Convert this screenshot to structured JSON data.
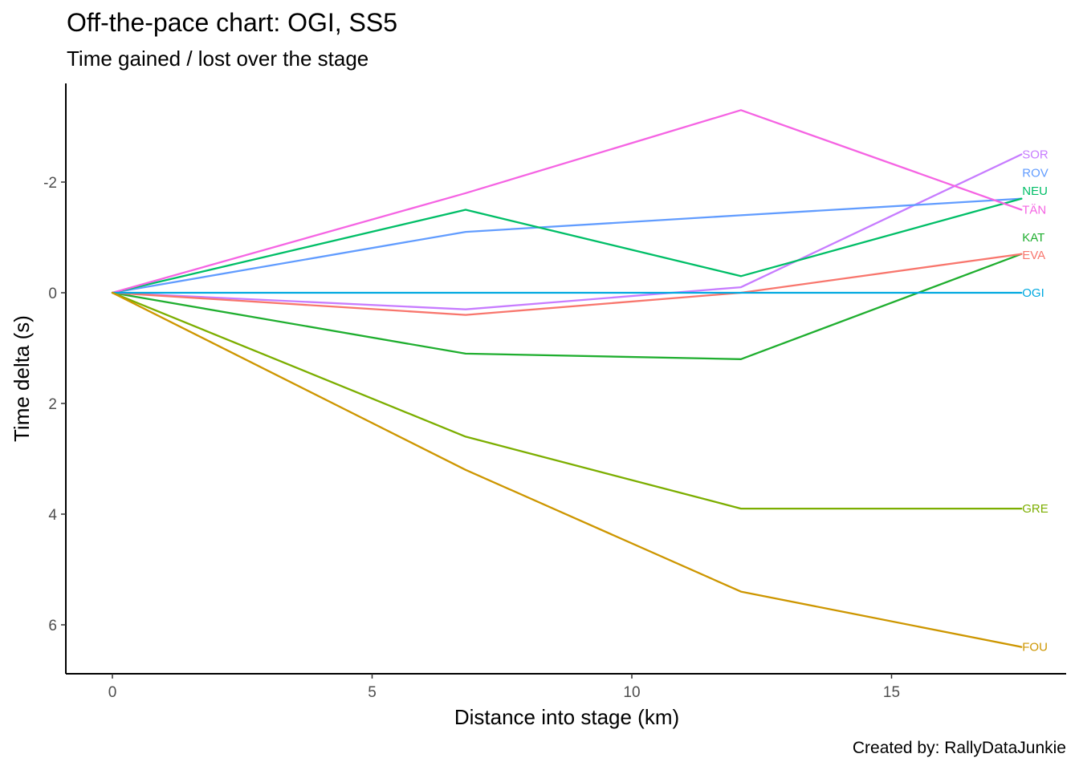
{
  "title": "Off-the-pace chart: OGI, SS5",
  "subtitle": "Time gained / lost over the stage",
  "caption": "Created by: RallyDataJunkie",
  "chart_data": {
    "type": "line",
    "xlabel": "Distance into stage (km)",
    "ylabel": "Time delta (s)",
    "xlim": [
      -0.85,
      18.4
    ],
    "ylim": [
      6.9,
      -3.8
    ],
    "y_reversed": true,
    "x_ticks": [
      0,
      5,
      10,
      15
    ],
    "y_ticks": [
      -2,
      0,
      2,
      4,
      6
    ],
    "y_tick_labels": [
      "-2",
      "0",
      "2",
      "4",
      "6"
    ],
    "grid": false,
    "legend": "direct labels at line ends",
    "x": [
      0,
      6.8,
      12.1,
      17.5
    ],
    "series": [
      {
        "name": "SOR",
        "color": "#C77CFF",
        "values": [
          0,
          0.3,
          -0.1,
          -2.5
        ]
      },
      {
        "name": "ROV",
        "color": "#619CFF",
        "values": [
          0,
          -1.1,
          -1.4,
          -1.7
        ]
      },
      {
        "name": "NEU",
        "color": "#00BE67",
        "values": [
          0,
          -1.5,
          -0.3,
          -1.7
        ]
      },
      {
        "name": "TÄN",
        "color": "#F564E3",
        "values": [
          0,
          -1.8,
          -3.3,
          -1.5
        ]
      },
      {
        "name": "KAT",
        "color": "#1FAE2F",
        "values": [
          0,
          1.1,
          1.2,
          -0.7
        ]
      },
      {
        "name": "EVA",
        "color": "#F8766D",
        "values": [
          0,
          0.4,
          0,
          -0.7
        ]
      },
      {
        "name": "OGI",
        "color": "#00A9E0",
        "values": [
          0,
          0,
          0,
          0
        ]
      },
      {
        "name": "GRE",
        "color": "#7CAE00",
        "values": [
          0,
          2.6,
          3.9,
          3.9
        ]
      },
      {
        "name": "FOU",
        "color": "#CD9600",
        "values": [
          0,
          3.2,
          5.4,
          6.4
        ]
      }
    ],
    "label_y_positions": [
      -2.5,
      -2.17,
      -1.84,
      -1.5,
      -1.0,
      -0.68,
      0,
      3.9,
      6.4
    ]
  }
}
